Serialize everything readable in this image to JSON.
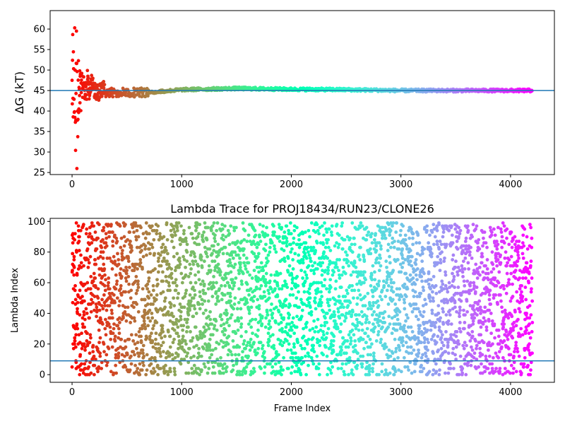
{
  "chart_data": [
    {
      "type": "scatter",
      "title": "",
      "xlabel": "",
      "ylabel": "ΔG (kT)",
      "xlim": [
        -200,
        4400
      ],
      "ylim": [
        24.5,
        64.5
      ],
      "xticks": [
        0,
        1000,
        2000,
        3000,
        4000
      ],
      "xtick_labels": [
        "0",
        "1000",
        "2000",
        "3000",
        "4000"
      ],
      "yticks": [
        25,
        30,
        35,
        40,
        45,
        50,
        55,
        60
      ],
      "ytick_labels": [
        "25",
        "30",
        "35",
        "40",
        "45",
        "50",
        "55",
        "60"
      ],
      "hline": 45,
      "hline_color": "#1f77b4",
      "colormap": "rainbow-reversed",
      "n_frames": 4200,
      "grid": false,
      "series": [
        {
          "x": [
            0,
            5,
            10,
            15,
            20,
            25,
            30,
            35,
            40,
            50,
            60,
            70,
            80,
            90,
            100,
            120,
            140,
            160,
            180,
            200,
            250,
            300,
            400,
            500,
            700,
            1000,
            1500,
            2000,
            2500,
            3000,
            3500,
            4000,
            4190
          ],
          "y": [
            60,
            26,
            50,
            34,
            58,
            40,
            48,
            38,
            55,
            44,
            51,
            42,
            47,
            40,
            46,
            45,
            48,
            44,
            47,
            45,
            44.5,
            45.5,
            44,
            44.5,
            44.5,
            45.2,
            45.5,
            45.3,
            45.2,
            45.0,
            45.0,
            45.0,
            45.0
          ]
        }
      ]
    },
    {
      "type": "scatter",
      "title": "Lambda Trace for PROJ18434/RUN23/CLONE26",
      "xlabel": "Frame Index",
      "ylabel": "Lambda Index",
      "xlim": [
        -200,
        4400
      ],
      "ylim": [
        -5,
        102
      ],
      "xticks": [
        0,
        1000,
        2000,
        3000,
        4000
      ],
      "xtick_labels": [
        "0",
        "1000",
        "2000",
        "3000",
        "4000"
      ],
      "yticks": [
        0,
        20,
        40,
        60,
        80,
        100
      ],
      "ytick_labels": [
        "0",
        "20",
        "40",
        "60",
        "80",
        "100"
      ],
      "hline": 9,
      "hline_color": "#1f77b4",
      "lambda_range": [
        0,
        99
      ],
      "colormap": "rainbow-reversed",
      "n_frames": 4200,
      "grid": false
    }
  ]
}
